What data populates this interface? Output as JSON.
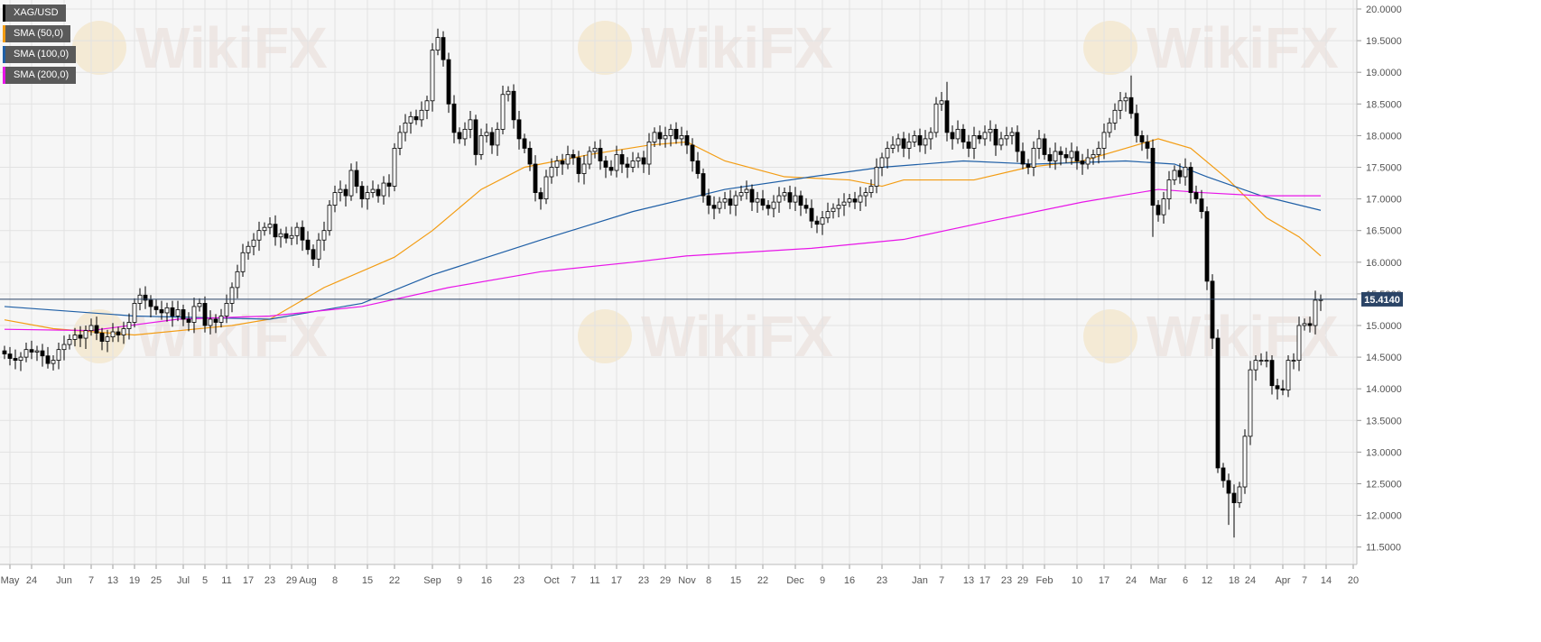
{
  "chart_data": {
    "type": "candlestick",
    "symbol": "XAG/USD",
    "legend": [
      {
        "label": "XAG/USD",
        "color": "#000000"
      },
      {
        "label": "SMA (50,0)",
        "color": "#f39c12"
      },
      {
        "label": "SMA (100,0)",
        "color": "#1f5fa6"
      },
      {
        "label": "SMA (200,0)",
        "color": "#e815e8"
      }
    ],
    "legend_position": "top-left",
    "ylim": [
      11.5,
      20.0
    ],
    "y_ticks": [
      "20.0000",
      "19.5000",
      "19.0000",
      "18.5000",
      "18.0000",
      "17.5000",
      "17.0000",
      "16.5000",
      "16.0000",
      "15.5000",
      "15.0000",
      "14.5000",
      "14.0000",
      "13.5000",
      "13.0000",
      "12.5000",
      "12.0000",
      "11.5000"
    ],
    "x_ticks": [
      {
        "label": "May",
        "i": 1
      },
      {
        "label": "24",
        "i": 5
      },
      {
        "label": "Jun",
        "i": 11
      },
      {
        "label": "7",
        "i": 16
      },
      {
        "label": "13",
        "i": 20
      },
      {
        "label": "19",
        "i": 24
      },
      {
        "label": "25",
        "i": 28
      },
      {
        "label": "Jul",
        "i": 33
      },
      {
        "label": "5",
        "i": 37
      },
      {
        "label": "11",
        "i": 41
      },
      {
        "label": "17",
        "i": 45
      },
      {
        "label": "23",
        "i": 49
      },
      {
        "label": "29",
        "i": 53
      },
      {
        "label": "Aug",
        "i": 56
      },
      {
        "label": "8",
        "i": 61
      },
      {
        "label": "15",
        "i": 67
      },
      {
        "label": "22",
        "i": 72
      },
      {
        "label": "Sep",
        "i": 79
      },
      {
        "label": "9",
        "i": 84
      },
      {
        "label": "16",
        "i": 89
      },
      {
        "label": "23",
        "i": 95
      },
      {
        "label": "Oct",
        "i": 101
      },
      {
        "label": "7",
        "i": 105
      },
      {
        "label": "11",
        "i": 109
      },
      {
        "label": "17",
        "i": 113
      },
      {
        "label": "23",
        "i": 118
      },
      {
        "label": "29",
        "i": 122
      },
      {
        "label": "Nov",
        "i": 126
      },
      {
        "label": "8",
        "i": 130
      },
      {
        "label": "15",
        "i": 135
      },
      {
        "label": "22",
        "i": 140
      },
      {
        "label": "Dec",
        "i": 146
      },
      {
        "label": "9",
        "i": 151
      },
      {
        "label": "16",
        "i": 156
      },
      {
        "label": "23",
        "i": 162
      },
      {
        "label": "Jan",
        "i": 169
      },
      {
        "label": "7",
        "i": 173
      },
      {
        "label": "13",
        "i": 178
      },
      {
        "label": "17",
        "i": 181
      },
      {
        "label": "23",
        "i": 185
      },
      {
        "label": "29",
        "i": 188
      },
      {
        "label": "Feb",
        "i": 192
      },
      {
        "label": "10",
        "i": 198
      },
      {
        "label": "17",
        "i": 203
      },
      {
        "label": "24",
        "i": 208
      },
      {
        "label": "Mar",
        "i": 213
      },
      {
        "label": "6",
        "i": 218
      },
      {
        "label": "12",
        "i": 222
      },
      {
        "label": "18",
        "i": 227
      },
      {
        "label": "24",
        "i": 230
      },
      {
        "label": "Apr",
        "i": 236
      },
      {
        "label": "7",
        "i": 240
      },
      {
        "label": "14",
        "i": 244
      },
      {
        "label": "20",
        "i": 249
      }
    ],
    "grid": true,
    "current_price": "15.4140",
    "close": [
      14.55,
      14.48,
      14.45,
      14.5,
      14.62,
      14.58,
      14.6,
      14.52,
      14.4,
      14.45,
      14.62,
      14.7,
      14.78,
      14.85,
      14.8,
      14.92,
      15.0,
      14.88,
      14.75,
      14.82,
      14.9,
      14.85,
      14.95,
      15.05,
      15.35,
      15.48,
      15.4,
      15.3,
      15.25,
      15.2,
      15.28,
      15.15,
      15.25,
      15.1,
      15.05,
      15.3,
      15.35,
      15.0,
      15.1,
      15.05,
      15.15,
      15.35,
      15.6,
      15.85,
      16.15,
      16.25,
      16.35,
      16.5,
      16.55,
      16.6,
      16.4,
      16.45,
      16.38,
      16.42,
      16.55,
      16.35,
      16.2,
      16.05,
      16.35,
      16.5,
      16.9,
      17.1,
      17.15,
      17.05,
      17.45,
      17.2,
      17.0,
      17.1,
      17.15,
      17.05,
      17.25,
      17.2,
      17.8,
      18.05,
      18.2,
      18.3,
      18.25,
      18.4,
      18.55,
      19.35,
      19.55,
      19.2,
      18.5,
      18.05,
      17.95,
      18.1,
      18.25,
      17.7,
      18.0,
      18.05,
      17.85,
      18.1,
      18.65,
      18.7,
      18.25,
      17.95,
      17.8,
      17.55,
      17.1,
      17.0,
      17.35,
      17.5,
      17.6,
      17.55,
      17.7,
      17.65,
      17.4,
      17.55,
      17.75,
      17.8,
      17.6,
      17.5,
      17.45,
      17.7,
      17.55,
      17.5,
      17.6,
      17.65,
      17.55,
      17.9,
      18.05,
      17.95,
      18.0,
      18.1,
      17.95,
      18.0,
      17.85,
      17.6,
      17.4,
      17.05,
      16.9,
      16.85,
      16.95,
      17.0,
      16.9,
      17.05,
      17.1,
      17.15,
      16.95,
      17.0,
      16.9,
      16.85,
      16.95,
      17.05,
      17.1,
      16.95,
      17.05,
      16.9,
      16.85,
      16.65,
      16.6,
      16.7,
      16.8,
      16.85,
      16.9,
      16.95,
      17.0,
      16.95,
      17.05,
      17.1,
      17.2,
      17.5,
      17.65,
      17.8,
      17.85,
      17.95,
      17.8,
      17.9,
      18.0,
      17.85,
      17.95,
      18.05,
      18.5,
      18.55,
      18.05,
      17.95,
      18.1,
      17.9,
      17.8,
      18.0,
      17.95,
      18.05,
      18.1,
      17.85,
      17.95,
      18.0,
      18.05,
      17.75,
      17.55,
      17.5,
      17.8,
      17.95,
      17.7,
      17.6,
      17.75,
      17.7,
      17.65,
      17.75,
      17.6,
      17.55,
      17.65,
      17.7,
      17.8,
      18.05,
      18.2,
      18.4,
      18.55,
      18.6,
      18.35,
      18.0,
      17.9,
      17.8,
      16.9,
      16.75,
      17.0,
      17.3,
      17.45,
      17.35,
      17.5,
      17.1,
      17.0,
      16.8,
      15.7,
      14.8,
      12.75,
      12.55,
      12.35,
      12.2,
      12.45,
      13.25,
      14.3,
      14.45,
      14.45,
      14.45,
      14.05,
      14.0,
      13.98,
      14.45,
      14.45,
      15.0,
      15.03,
      15.0,
      15.4,
      15.41
    ],
    "wick_extremes": [
      {
        "i": 81,
        "high": 19.65
      },
      {
        "i": 174,
        "high": 18.85
      },
      {
        "i": 208,
        "high": 18.95
      },
      {
        "i": 212,
        "low": 16.4
      },
      {
        "i": 227,
        "low": 11.65
      },
      {
        "i": 226,
        "low": 11.85
      },
      {
        "i": 242,
        "high": 15.55
      }
    ],
    "sma": [
      {
        "label": "SMA (50,0)",
        "color": "#f39c12",
        "points": [
          [
            0,
            15.09
          ],
          [
            9,
            14.95
          ],
          [
            24,
            14.85
          ],
          [
            42,
            15.0
          ],
          [
            49,
            15.1
          ],
          [
            59,
            15.6
          ],
          [
            72,
            16.08
          ],
          [
            79,
            16.5
          ],
          [
            88,
            17.15
          ],
          [
            96,
            17.5
          ],
          [
            108,
            17.7
          ],
          [
            119,
            17.85
          ],
          [
            126,
            17.9
          ],
          [
            133,
            17.6
          ],
          [
            144,
            17.35
          ],
          [
            156,
            17.3
          ],
          [
            162,
            17.2
          ],
          [
            166,
            17.3
          ],
          [
            179,
            17.3
          ],
          [
            189,
            17.5
          ],
          [
            199,
            17.6
          ],
          [
            207,
            17.8
          ],
          [
            213,
            17.95
          ],
          [
            219,
            17.8
          ],
          [
            226,
            17.3
          ],
          [
            233,
            16.7
          ],
          [
            239,
            16.4
          ],
          [
            243,
            16.1
          ]
        ]
      },
      {
        "label": "SMA (100,0)",
        "color": "#1f5fa6",
        "points": [
          [
            0,
            15.3
          ],
          [
            24,
            15.15
          ],
          [
            49,
            15.1
          ],
          [
            66,
            15.35
          ],
          [
            79,
            15.8
          ],
          [
            99,
            16.35
          ],
          [
            116,
            16.8
          ],
          [
            133,
            17.15
          ],
          [
            149,
            17.35
          ],
          [
            162,
            17.5
          ],
          [
            177,
            17.6
          ],
          [
            190,
            17.55
          ],
          [
            207,
            17.6
          ],
          [
            216,
            17.55
          ],
          [
            222,
            17.35
          ],
          [
            232,
            17.05
          ],
          [
            243,
            16.82
          ]
        ]
      },
      {
        "label": "SMA (200,0)",
        "color": "#e815e8",
        "points": [
          [
            0,
            14.94
          ],
          [
            16,
            14.92
          ],
          [
            32,
            15.1
          ],
          [
            49,
            15.15
          ],
          [
            66,
            15.3
          ],
          [
            82,
            15.6
          ],
          [
            99,
            15.85
          ],
          [
            116,
            16.0
          ],
          [
            126,
            16.1
          ],
          [
            149,
            16.22
          ],
          [
            166,
            16.36
          ],
          [
            182,
            16.65
          ],
          [
            199,
            16.95
          ],
          [
            213,
            17.15
          ],
          [
            221,
            17.1
          ],
          [
            232,
            17.05
          ],
          [
            243,
            17.05
          ]
        ]
      }
    ]
  },
  "watermark": "WikiFX"
}
